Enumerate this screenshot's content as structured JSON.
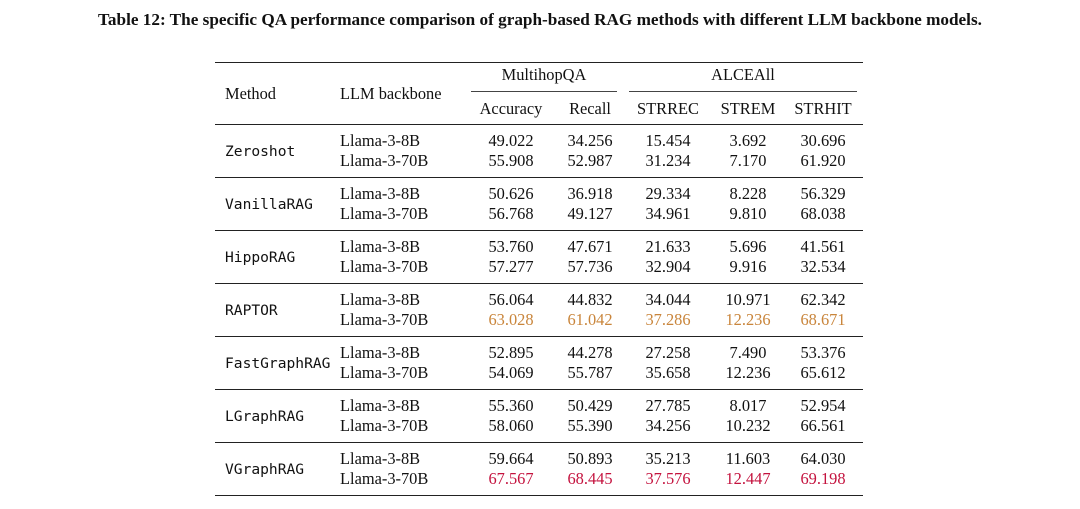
{
  "caption": "Table 12: The specific QA performance comparison of graph-based RAG methods with different LLM backbone models.",
  "headers": {
    "method": "Method",
    "backbone": "LLM backbone",
    "group_multihop": "MultihopQA",
    "group_alce": "ALCEAll",
    "accuracy": "Accuracy",
    "recall": "Recall",
    "strrec": "STRREC",
    "strem": "STREM",
    "strhit": "STRHIT"
  },
  "highlight_colors": {
    "orange": "#c9853b",
    "red": "#c4123e"
  },
  "rows": [
    {
      "method": "Zeroshot",
      "small": {
        "backbone": "Llama-3-8B",
        "accuracy": "49.022",
        "recall": "34.256",
        "strrec": "15.454",
        "strem": "3.692",
        "strhit": "30.696"
      },
      "large": {
        "backbone": "Llama-3-70B",
        "accuracy": "55.908",
        "recall": "52.987",
        "strrec": "31.234",
        "strem": "7.170",
        "strhit": "61.920"
      }
    },
    {
      "method": "VanillaRAG",
      "small": {
        "backbone": "Llama-3-8B",
        "accuracy": "50.626",
        "recall": "36.918",
        "strrec": "29.334",
        "strem": "8.228",
        "strhit": "56.329"
      },
      "large": {
        "backbone": "Llama-3-70B",
        "accuracy": "56.768",
        "recall": "49.127",
        "strrec": "34.961",
        "strem": "9.810",
        "strhit": "68.038"
      }
    },
    {
      "method": "HippoRAG",
      "small": {
        "backbone": "Llama-3-8B",
        "accuracy": "53.760",
        "recall": "47.671",
        "strrec": "21.633",
        "strem": "5.696",
        "strhit": "41.561"
      },
      "large": {
        "backbone": "Llama-3-70B",
        "accuracy": "57.277",
        "recall": "57.736",
        "strrec": "32.904",
        "strem": "9.916",
        "strhit": "32.534"
      }
    },
    {
      "method": "RAPTOR",
      "small": {
        "backbone": "Llama-3-8B",
        "accuracy": "56.064",
        "recall": "44.832",
        "strrec": "34.044",
        "strem": "10.971",
        "strhit": "62.342"
      },
      "large": {
        "backbone": "Llama-3-70B",
        "accuracy": "63.028",
        "recall": "61.042",
        "strrec": "37.286",
        "strem": "12.236",
        "strhit": "68.671"
      }
    },
    {
      "method": "FastGraphRAG",
      "small": {
        "backbone": "Llama-3-8B",
        "accuracy": "52.895",
        "recall": "44.278",
        "strrec": "27.258",
        "strem": "7.490",
        "strhit": "53.376"
      },
      "large": {
        "backbone": "Llama-3-70B",
        "accuracy": "54.069",
        "recall": "55.787",
        "strrec": "35.658",
        "strem": "12.236",
        "strhit": "65.612"
      }
    },
    {
      "method": "LGraphRAG",
      "small": {
        "backbone": "Llama-3-8B",
        "accuracy": "55.360",
        "recall": "50.429",
        "strrec": "27.785",
        "strem": "8.017",
        "strhit": "52.954"
      },
      "large": {
        "backbone": "Llama-3-70B",
        "accuracy": "58.060",
        "recall": "55.390",
        "strrec": "34.256",
        "strem": "10.232",
        "strhit": "66.561"
      }
    },
    {
      "method": "VGraphRAG",
      "small": {
        "backbone": "Llama-3-8B",
        "accuracy": "59.664",
        "recall": "50.893",
        "strrec": "35.213",
        "strem": "11.603",
        "strhit": "64.030"
      },
      "large": {
        "backbone": "Llama-3-70B",
        "accuracy": "67.567",
        "recall": "68.445",
        "strrec": "37.576",
        "strem": "12.447",
        "strhit": "69.198"
      }
    }
  ]
}
